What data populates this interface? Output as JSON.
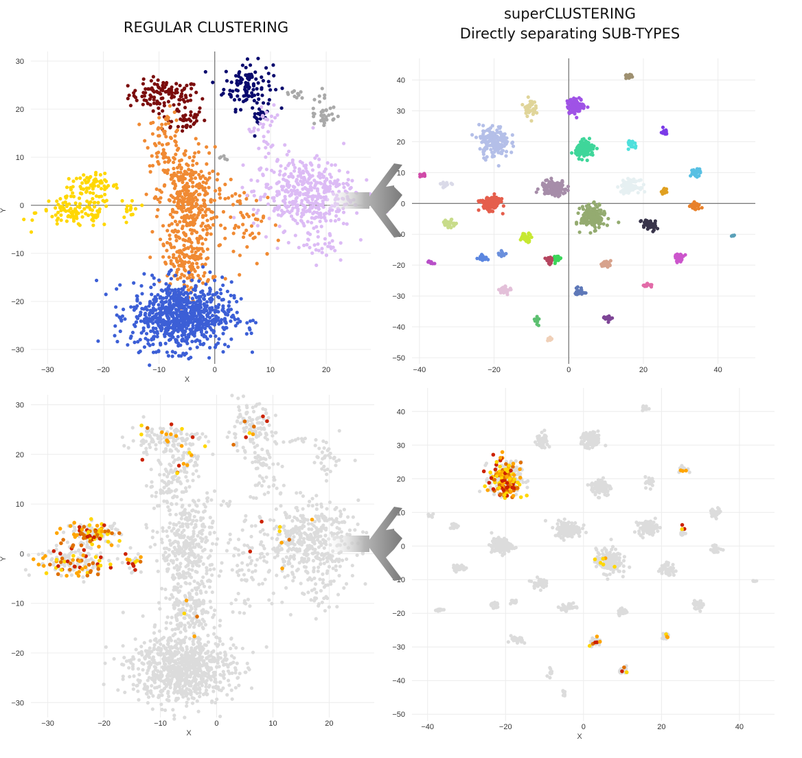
{
  "titles": {
    "left": "REGULAR CLUSTERING",
    "right_line1": "superCLUSTERING",
    "right_line2": "Directly separating SUB-TYPES"
  },
  "chart_data": [
    {
      "id": "regular-clusters",
      "type": "scatter",
      "xlabel": "X",
      "ylabel": "Y",
      "xlim": [
        -33,
        28
      ],
      "ylim": [
        -33,
        32
      ],
      "xticks": [
        -30,
        -20,
        -10,
        0,
        10,
        20
      ],
      "yticks": [
        -30,
        -20,
        -10,
        0,
        10,
        20,
        30
      ],
      "show_axes_lines": true,
      "grid": true,
      "clusters": [
        {
          "color": "#7b0d0d",
          "cx": -9,
          "cy": 23,
          "sx": 3.2,
          "sy": 1.5,
          "n": 110
        },
        {
          "color": "#7b0d0d",
          "cx": -6,
          "cy": 18,
          "sx": 2.2,
          "sy": 1.5,
          "n": 40
        },
        {
          "color": "#0a0a6e",
          "cx": 6,
          "cy": 25,
          "sx": 2.2,
          "sy": 2.4,
          "n": 110
        },
        {
          "color": "#0a0a6e",
          "cx": 8,
          "cy": 18.5,
          "sx": 0.8,
          "sy": 1.2,
          "n": 18
        },
        {
          "color": "#ffd700",
          "cx": -22,
          "cy": 4,
          "sx": 2.4,
          "sy": 1.2,
          "n": 70
        },
        {
          "color": "#ffd700",
          "cx": -25,
          "cy": -1.5,
          "sx": 3.5,
          "sy": 1.6,
          "n": 100
        },
        {
          "color": "#ffd700",
          "cx": -15,
          "cy": -1,
          "sx": 0.8,
          "sy": 1.5,
          "n": 14
        },
        {
          "color": "#f08a33",
          "cx": -9,
          "cy": 14,
          "sx": 1.6,
          "sy": 2.8,
          "n": 60
        },
        {
          "color": "#f08a33",
          "cx": -5,
          "cy": 1,
          "sx": 2.5,
          "sy": 5.5,
          "n": 360
        },
        {
          "color": "#f08a33",
          "cx": -5,
          "cy": -12,
          "sx": 2.2,
          "sy": 3,
          "n": 140
        },
        {
          "color": "#f08a33",
          "cx": 6,
          "cy": -4,
          "sx": 3,
          "sy": 4,
          "n": 60
        },
        {
          "color": "#3c5fd6",
          "cx": -6,
          "cy": -23,
          "sx": 4.5,
          "sy": 3.5,
          "n": 800
        },
        {
          "color": "#dcbbf5",
          "cx": 16,
          "cy": 2.5,
          "sx": 4.5,
          "sy": 3.8,
          "n": 420
        },
        {
          "color": "#dcbbf5",
          "cx": 9,
          "cy": 15,
          "sx": 1.5,
          "sy": 3,
          "n": 30
        },
        {
          "color": "#dcbbf5",
          "cx": 19,
          "cy": -8,
          "sx": 1.5,
          "sy": 2,
          "n": 30
        },
        {
          "color": "#a9a9a9",
          "cx": 19.5,
          "cy": 19.5,
          "sx": 1.2,
          "sy": 2.2,
          "n": 35
        },
        {
          "color": "#a9a9a9",
          "cx": 14,
          "cy": 23,
          "sx": 1,
          "sy": 0.4,
          "n": 10
        },
        {
          "color": "#a9a9a9",
          "cx": 2,
          "cy": 10,
          "sx": 0.5,
          "sy": 0.3,
          "n": 5
        }
      ]
    },
    {
      "id": "super-clusters",
      "type": "scatter",
      "xlabel": "",
      "ylabel": "",
      "xlim": [
        -42,
        50
      ],
      "ylim": [
        -52,
        47
      ],
      "xticks": [
        -40,
        -20,
        0,
        20,
        40
      ],
      "yticks": [
        -50,
        -40,
        -30,
        -20,
        -10,
        0,
        10,
        20,
        30,
        40
      ],
      "show_axes_lines": true,
      "grid": true,
      "clusters": [
        {
          "color": "#9f52e6",
          "cx": 2,
          "cy": 31.5,
          "sx": 1.2,
          "sy": 1.2,
          "n": 110
        },
        {
          "color": "#e0d59a",
          "cx": -10.5,
          "cy": 31,
          "sx": 0.8,
          "sy": 1.4,
          "n": 40
        },
        {
          "color": "#b4bfe8",
          "cx": -20,
          "cy": 20,
          "sx": 2,
          "sy": 2.5,
          "n": 160
        },
        {
          "color": "#3fd69a",
          "cx": 4.5,
          "cy": 17.5,
          "sx": 1.3,
          "sy": 1.3,
          "n": 110
        },
        {
          "color": "#4fe0dc",
          "cx": 17,
          "cy": 19,
          "sx": 0.6,
          "sy": 0.8,
          "n": 22
        },
        {
          "color": "#7b3be8",
          "cx": 25.5,
          "cy": 23,
          "sx": 0.6,
          "sy": 0.5,
          "n": 15
        },
        {
          "color": "#a68da9",
          "cx": -4,
          "cy": 5,
          "sx": 1.7,
          "sy": 1.2,
          "n": 150
        },
        {
          "color": "#e6f0f2",
          "cx": 16.5,
          "cy": 5.5,
          "sx": 1.2,
          "sy": 1,
          "n": 90
        },
        {
          "color": "#e55e4c",
          "cx": -21,
          "cy": 0,
          "sx": 1.3,
          "sy": 1.1,
          "n": 150
        },
        {
          "color": "#94ab70",
          "cx": 6.5,
          "cy": -4.5,
          "sx": 1.6,
          "sy": 1.8,
          "n": 180
        },
        {
          "color": "#39354b",
          "cx": 21.5,
          "cy": -7,
          "sx": 1,
          "sy": 1,
          "n": 50
        },
        {
          "color": "#58c0e3",
          "cx": 34,
          "cy": 10,
          "sx": 0.7,
          "sy": 0.6,
          "n": 35
        },
        {
          "color": "#e0a020",
          "cx": 25.5,
          "cy": 4,
          "sx": 0.4,
          "sy": 0.5,
          "n": 12
        },
        {
          "color": "#e8812b",
          "cx": 34,
          "cy": -1,
          "sx": 0.7,
          "sy": 0.6,
          "n": 25
        },
        {
          "color": "#dadae8",
          "cx": -33,
          "cy": 6,
          "sx": 0.7,
          "sy": 0.4,
          "n": 18
        },
        {
          "color": "#d04aa8",
          "cx": -39,
          "cy": 9,
          "sx": 0.4,
          "sy": 0.3,
          "n": 8
        },
        {
          "color": "#c8dc8a",
          "cx": -32,
          "cy": -6.5,
          "sx": 0.9,
          "sy": 0.6,
          "n": 30
        },
        {
          "color": "#c7e832",
          "cx": -11.5,
          "cy": -11,
          "sx": 0.8,
          "sy": 0.7,
          "n": 45
        },
        {
          "color": "#5b86e0",
          "cx": -23,
          "cy": -17.5,
          "sx": 0.6,
          "sy": 0.5,
          "n": 20
        },
        {
          "color": "#6a8fdc",
          "cx": -18,
          "cy": -16.5,
          "sx": 0.5,
          "sy": 0.6,
          "n": 14
        },
        {
          "color": "#b5455f",
          "cx": -5,
          "cy": -18.5,
          "sx": 0.6,
          "sy": 0.6,
          "n": 18
        },
        {
          "color": "#3cd65a",
          "cx": -3,
          "cy": -18,
          "sx": 0.5,
          "sy": 0.6,
          "n": 18
        },
        {
          "color": "#d7a28c",
          "cx": 10,
          "cy": -19.5,
          "sx": 0.7,
          "sy": 0.5,
          "n": 25
        },
        {
          "color": "#cc55cc",
          "cx": 29.5,
          "cy": -17.5,
          "sx": 0.7,
          "sy": 0.6,
          "n": 30
        },
        {
          "color": "#e3c0d9",
          "cx": -17,
          "cy": -28,
          "sx": 0.8,
          "sy": 0.6,
          "n": 30
        },
        {
          "color": "#b84fc8",
          "cx": -37,
          "cy": -19,
          "sx": 0.5,
          "sy": 0.3,
          "n": 10
        },
        {
          "color": "#5e78b8",
          "cx": 3,
          "cy": -28.5,
          "sx": 0.7,
          "sy": 0.6,
          "n": 25
        },
        {
          "color": "#e26ba8",
          "cx": 21,
          "cy": -26.5,
          "sx": 0.6,
          "sy": 0.4,
          "n": 15
        },
        {
          "color": "#7e4596",
          "cx": 10.5,
          "cy": -37,
          "sx": 0.6,
          "sy": 0.5,
          "n": 22
        },
        {
          "color": "#5cc070",
          "cx": -8.5,
          "cy": -38,
          "sx": 0.4,
          "sy": 0.7,
          "n": 10
        },
        {
          "color": "#f0d0b8",
          "cx": -5,
          "cy": -44,
          "sx": 0.4,
          "sy": 0.4,
          "n": 10
        },
        {
          "color": "#9e9070",
          "cx": 16,
          "cy": 41,
          "sx": 0.5,
          "sy": 0.4,
          "n": 12
        },
        {
          "color": "#5aa0b8",
          "cx": 44,
          "cy": -10.5,
          "sx": 0.3,
          "sy": 0.2,
          "n": 5
        }
      ]
    },
    {
      "id": "regular-highlight",
      "type": "scatter",
      "xlabel": "X",
      "ylabel": "Y",
      "xlim": [
        -33,
        28
      ],
      "ylim": [
        -33,
        32
      ],
      "xticks": [
        -30,
        -20,
        -10,
        0,
        10,
        20
      ],
      "yticks": [
        -30,
        -20,
        -10,
        0,
        10,
        20,
        30
      ],
      "show_axes_lines": false,
      "grid": true,
      "base_color": "#dcdcdc",
      "highlight_colors": [
        "#ffd700",
        "#ffa500",
        "#e07000",
        "#cc2200"
      ],
      "highlight_clusters": [
        {
          "cx": -22,
          "cy": 4,
          "sx": 2.5,
          "sy": 1.2,
          "n": 70
        },
        {
          "cx": -25,
          "cy": -1.5,
          "sx": 3.5,
          "sy": 1.6,
          "n": 60
        },
        {
          "cx": -15,
          "cy": -2,
          "sx": 0.8,
          "sy": 1,
          "n": 12
        },
        {
          "cx": -9,
          "cy": 24,
          "sx": 3,
          "sy": 1.5,
          "n": 14
        },
        {
          "cx": -6,
          "cy": 18,
          "sx": 1.5,
          "sy": 1.2,
          "n": 8
        },
        {
          "cx": 6,
          "cy": 25,
          "sx": 2,
          "sy": 2,
          "n": 8
        },
        {
          "cx": 12,
          "cy": 2,
          "sx": 3,
          "sy": 3,
          "n": 8
        },
        {
          "cx": -5,
          "cy": -12,
          "sx": 2,
          "sy": 2,
          "n": 4
        }
      ]
    },
    {
      "id": "super-highlight",
      "type": "scatter",
      "xlabel": "X",
      "ylabel": "",
      "xlim": [
        -44,
        49
      ],
      "ylim": [
        -52,
        47
      ],
      "xticks": [
        -40,
        -20,
        0,
        20,
        40
      ],
      "yticks": [
        -50,
        -40,
        -30,
        -20,
        -10,
        0,
        10,
        20,
        30,
        40
      ],
      "show_axes_lines": false,
      "grid": true,
      "base_color": "#dcdcdc",
      "highlight_colors": [
        "#ffd700",
        "#ffa500",
        "#e07000",
        "#cc2200"
      ],
      "highlight_clusters": [
        {
          "cx": -20,
          "cy": 20,
          "sx": 2,
          "sy": 2.4,
          "n": 150
        },
        {
          "cx": 5,
          "cy": -5,
          "sx": 1.5,
          "sy": 1.5,
          "n": 6
        },
        {
          "cx": 3,
          "cy": -28.5,
          "sx": 1,
          "sy": 0.8,
          "n": 6
        },
        {
          "cx": 25.5,
          "cy": 23,
          "sx": 0.5,
          "sy": 0.5,
          "n": 3
        },
        {
          "cx": 25.5,
          "cy": 5,
          "sx": 0.5,
          "sy": 0.5,
          "n": 3
        },
        {
          "cx": 10.5,
          "cy": -37,
          "sx": 0.6,
          "sy": 0.5,
          "n": 3
        },
        {
          "cx": 21,
          "cy": -27,
          "sx": 0.5,
          "sy": 0.4,
          "n": 3
        }
      ]
    }
  ]
}
